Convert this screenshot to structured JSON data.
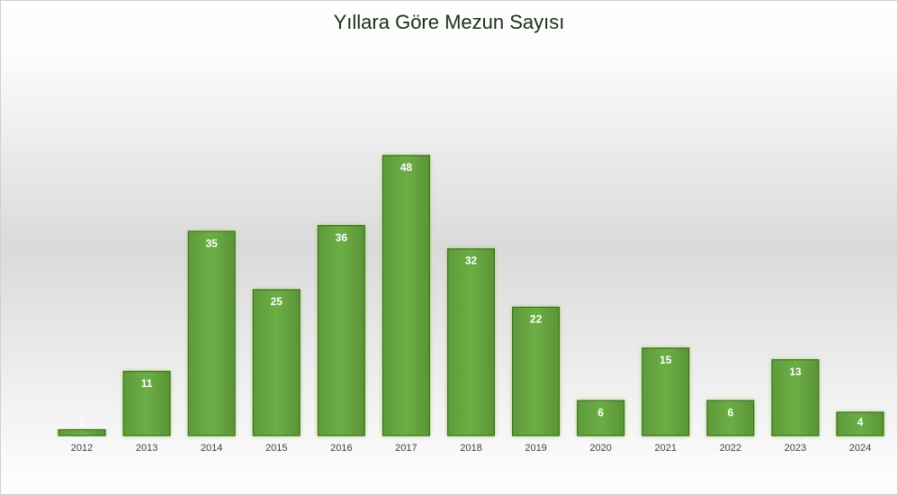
{
  "chart_data": {
    "type": "bar",
    "title": "Yıllara Göre Mezun Sayısı",
    "categories": [
      "2012",
      "2013",
      "2014",
      "2015",
      "2016",
      "2017",
      "2018",
      "2019",
      "2020",
      "2021",
      "2022",
      "2023",
      "2024"
    ],
    "values": [
      1,
      11,
      35,
      25,
      36,
      48,
      32,
      22,
      6,
      15,
      6,
      13,
      4
    ],
    "color": "#6aa744",
    "ylim": [
      0,
      60
    ]
  }
}
